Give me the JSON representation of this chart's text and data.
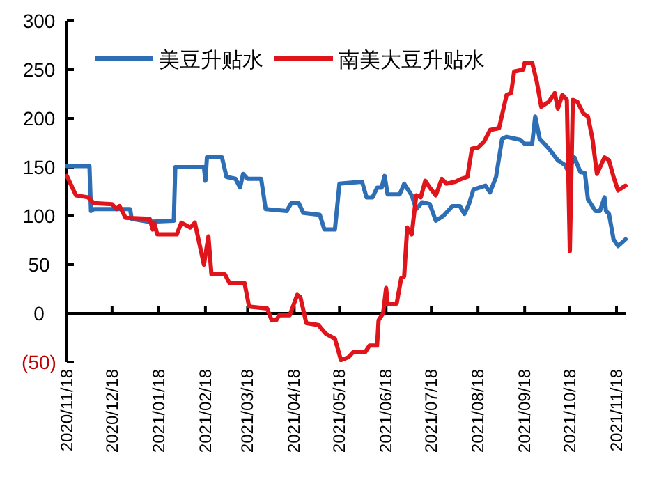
{
  "chart_data": {
    "type": "line",
    "legend": "top",
    "line_style": "solid",
    "marker": "none",
    "xlim": [
      "2020-11-18",
      "2021-11-24"
    ],
    "xticks": [
      {
        "value": "2020-11-18",
        "label": "2020/11/18"
      },
      {
        "value": "2020-12-18",
        "label": "2020/12/18"
      },
      {
        "value": "2021-01-18",
        "label": "2021/01/18"
      },
      {
        "value": "2021-02-18",
        "label": "2021/02/18"
      },
      {
        "value": "2021-03-18",
        "label": "2021/03/18"
      },
      {
        "value": "2021-04-18",
        "label": "2021/04/18"
      },
      {
        "value": "2021-05-18",
        "label": "2021/05/18"
      },
      {
        "value": "2021-06-18",
        "label": "2021/06/18"
      },
      {
        "value": "2021-07-18",
        "label": "2021/07/18"
      },
      {
        "value": "2021-08-18",
        "label": "2021/08/18"
      },
      {
        "value": "2021-09-18",
        "label": "2021/09/18"
      },
      {
        "value": "2021-10-18",
        "label": "2021/10/18"
      },
      {
        "value": "2021-11-18",
        "label": "2021/11/18"
      }
    ],
    "ylim": [
      -50,
      300
    ],
    "yticks": [
      {
        "value": -50,
        "label": "(50)"
      },
      0,
      50,
      100,
      150,
      200,
      250,
      300
    ],
    "series": [
      {
        "name": "美豆升贴水",
        "color": "#2e6eb5",
        "x": [
          "2020-11-18",
          "2020-12-03",
          "2020-12-04",
          "2020-12-06",
          "2020-12-30",
          "2020-12-31",
          "2021-01-11",
          "2021-01-28",
          "2021-01-29",
          "2021-02-17",
          "2021-02-18",
          "2021-02-19",
          "2021-03-01",
          "2021-03-04",
          "2021-03-10",
          "2021-03-13",
          "2021-03-15",
          "2021-03-18",
          "2021-03-27",
          "2021-03-30",
          "2021-04-13",
          "2021-04-16",
          "2021-04-21",
          "2021-04-24",
          "2021-05-05",
          "2021-05-08",
          "2021-05-15",
          "2021-05-18",
          "2021-06-02",
          "2021-06-05",
          "2021-06-09",
          "2021-06-12",
          "2021-06-15",
          "2021-06-17",
          "2021-06-19",
          "2021-06-27",
          "2021-06-30",
          "2021-07-05",
          "2021-07-08",
          "2021-07-12",
          "2021-07-17",
          "2021-07-21",
          "2021-07-26",
          "2021-08-01",
          "2021-08-06",
          "2021-08-09",
          "2021-08-12",
          "2021-08-15",
          "2021-08-23",
          "2021-08-26",
          "2021-08-30",
          "2021-09-03",
          "2021-09-06",
          "2021-09-15",
          "2021-09-18",
          "2021-09-23",
          "2021-09-25",
          "2021-09-28",
          "2021-10-04",
          "2021-10-10",
          "2021-10-15",
          "2021-10-17",
          "2021-10-21",
          "2021-10-25",
          "2021-10-28",
          "2021-10-30",
          "2021-11-04",
          "2021-11-07",
          "2021-11-10",
          "2021-11-11",
          "2021-11-13",
          "2021-11-16",
          "2021-11-19",
          "2021-11-24"
        ],
        "values": [
          151,
          151,
          105,
          107,
          107,
          97,
          94,
          95,
          150,
          150,
          136,
          160,
          160,
          140,
          138,
          129,
          143,
          138,
          138,
          107,
          105,
          113,
          113,
          103,
          101,
          86,
          86,
          133,
          135,
          119,
          119,
          129,
          129,
          141,
          122,
          122,
          133,
          121,
          107,
          114,
          112,
          95,
          100,
          110,
          110,
          102,
          112,
          127,
          131,
          124,
          140,
          179,
          181,
          178,
          174,
          174,
          202,
          179,
          169,
          157,
          152,
          145,
          160,
          145,
          144,
          117,
          105,
          105,
          119,
          105,
          102,
          76,
          69,
          76
        ]
      },
      {
        "name": "南美大豆升贴水",
        "color": "#e0141b",
        "x": [
          "2020-11-18",
          "2020-11-24",
          "2020-12-02",
          "2020-12-06",
          "2020-12-18",
          "2020-12-21",
          "2020-12-23",
          "2020-12-27",
          "2021-01-12",
          "2021-01-14",
          "2021-01-15",
          "2021-01-17",
          "2021-01-30",
          "2021-02-02",
          "2021-02-08",
          "2021-02-11",
          "2021-02-17",
          "2021-02-20",
          "2021-02-22",
          "2021-03-03",
          "2021-03-06",
          "2021-03-16",
          "2021-03-19",
          "2021-03-31",
          "2021-04-03",
          "2021-04-06",
          "2021-04-08",
          "2021-04-15",
          "2021-04-20",
          "2021-04-22",
          "2021-04-26",
          "2021-05-04",
          "2021-05-09",
          "2021-05-15",
          "2021-05-19",
          "2021-05-24",
          "2021-05-27",
          "2021-06-04",
          "2021-06-07",
          "2021-06-12",
          "2021-06-13",
          "2021-06-16",
          "2021-06-18",
          "2021-06-19",
          "2021-06-25",
          "2021-06-28",
          "2021-06-30",
          "2021-07-02",
          "2021-07-05",
          "2021-07-08",
          "2021-07-11",
          "2021-07-14",
          "2021-07-17",
          "2021-07-21",
          "2021-07-25",
          "2021-07-28",
          "2021-08-03",
          "2021-08-07",
          "2021-08-11",
          "2021-08-14",
          "2021-08-18",
          "2021-08-22",
          "2021-08-26",
          "2021-09-01",
          "2021-09-06",
          "2021-09-09",
          "2021-09-11",
          "2021-09-17",
          "2021-09-18",
          "2021-09-23",
          "2021-09-26",
          "2021-09-29",
          "2021-10-04",
          "2021-10-08",
          "2021-10-10",
          "2021-10-13",
          "2021-10-16",
          "2021-10-18",
          "2021-10-20",
          "2021-10-23",
          "2021-10-27",
          "2021-10-30",
          "2021-11-02",
          "2021-11-05",
          "2021-11-10",
          "2021-11-13",
          "2021-11-16",
          "2021-11-19",
          "2021-11-24"
        ],
        "values": [
          141,
          121,
          119,
          113,
          112,
          107,
          110,
          98,
          97,
          86,
          93,
          81,
          81,
          93,
          88,
          93,
          50,
          79,
          40,
          40,
          31,
          31,
          7,
          5,
          -7,
          -7,
          -2,
          -2,
          19,
          17,
          -10,
          -12,
          -21,
          -26,
          -48,
          -45,
          -40,
          -40,
          -33,
          -33,
          -7,
          0,
          26,
          10,
          10,
          36,
          38,
          88,
          81,
          121,
          119,
          136,
          129,
          121,
          138,
          133,
          135,
          138,
          140,
          169,
          170,
          176,
          188,
          190,
          224,
          226,
          248,
          250,
          257,
          257,
          238,
          212,
          217,
          226,
          210,
          224,
          219,
          64,
          219,
          217,
          205,
          202,
          179,
          143,
          160,
          157,
          140,
          126,
          131
        ]
      }
    ]
  }
}
